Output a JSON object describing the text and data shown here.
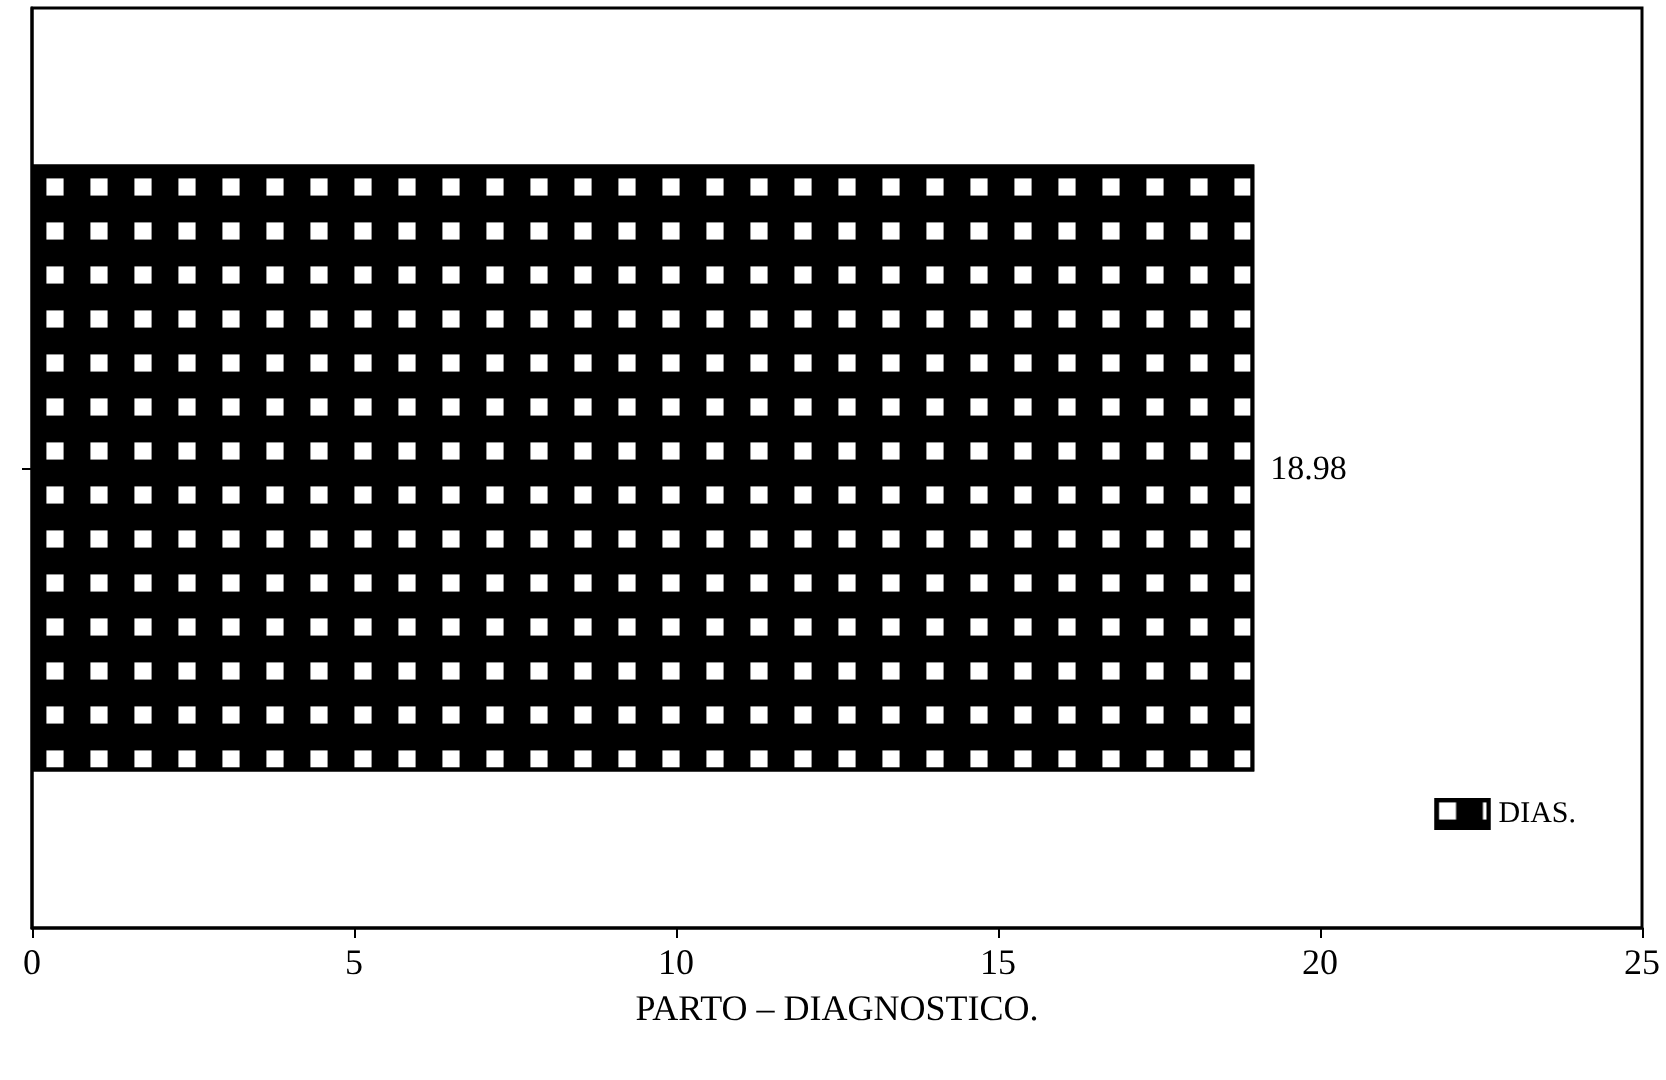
{
  "chart_data": {
    "type": "bar",
    "orientation": "horizontal",
    "xlabel": "PARTO – DIAGNOSTICO.",
    "categories": [
      null
    ],
    "series": [
      {
        "name": "DIAS.",
        "color": "#000000",
        "values": [
          18.98
        ]
      }
    ],
    "xlim": [
      0,
      25
    ],
    "xticks": [
      0,
      5,
      10,
      15,
      20,
      25
    ],
    "data_labels": true,
    "legend": "bottom right",
    "grid": false
  }
}
